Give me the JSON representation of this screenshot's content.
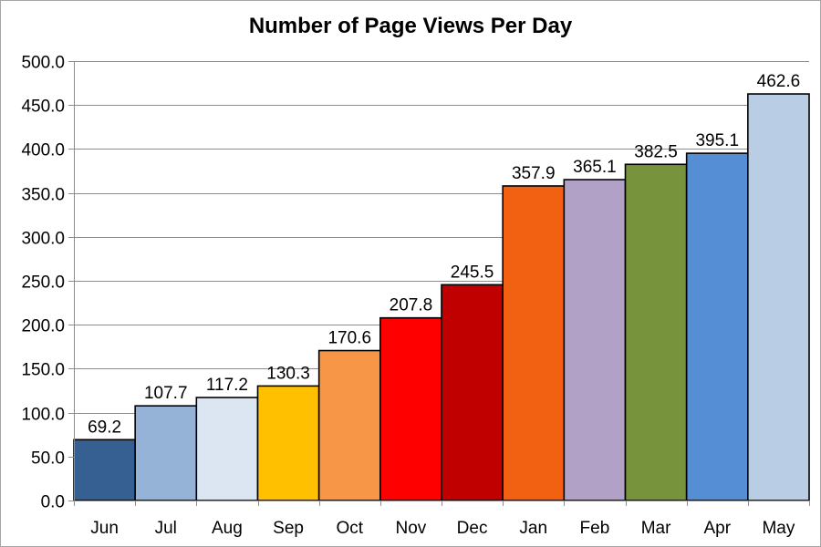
{
  "chart_data": {
    "type": "bar",
    "title": "Number of Page Views Per Day",
    "xlabel": "",
    "ylabel": "",
    "categories": [
      "Jun",
      "Jul",
      "Aug",
      "Sep",
      "Oct",
      "Nov",
      "Dec",
      "Jan",
      "Feb",
      "Mar",
      "Apr",
      "May"
    ],
    "values": [
      69.2,
      107.7,
      117.2,
      130.3,
      170.6,
      207.8,
      245.5,
      357.9,
      365.1,
      382.5,
      395.1,
      462.6
    ],
    "value_labels": [
      "69.2",
      "107.7",
      "117.2",
      "130.3",
      "170.6",
      "207.8",
      "245.5",
      "357.9",
      "365.1",
      "382.5",
      "395.1",
      "462.6"
    ],
    "bar_colors": [
      "#376092",
      "#95b3d7",
      "#dce6f2",
      "#ffc000",
      "#f79646",
      "#ff0000",
      "#c00000",
      "#f26012",
      "#b2a1c7",
      "#77933c",
      "#558ed5",
      "#b9cde5"
    ],
    "ylim": [
      0,
      500
    ],
    "yticks": [
      "0.0",
      "50.0",
      "100.0",
      "150.0",
      "200.0",
      "250.0",
      "300.0",
      "350.0",
      "400.0",
      "450.0",
      "500.0"
    ],
    "ytick_values": [
      0,
      50,
      100,
      150,
      200,
      250,
      300,
      350,
      400,
      450,
      500
    ],
    "grid": true,
    "legend": "none"
  }
}
